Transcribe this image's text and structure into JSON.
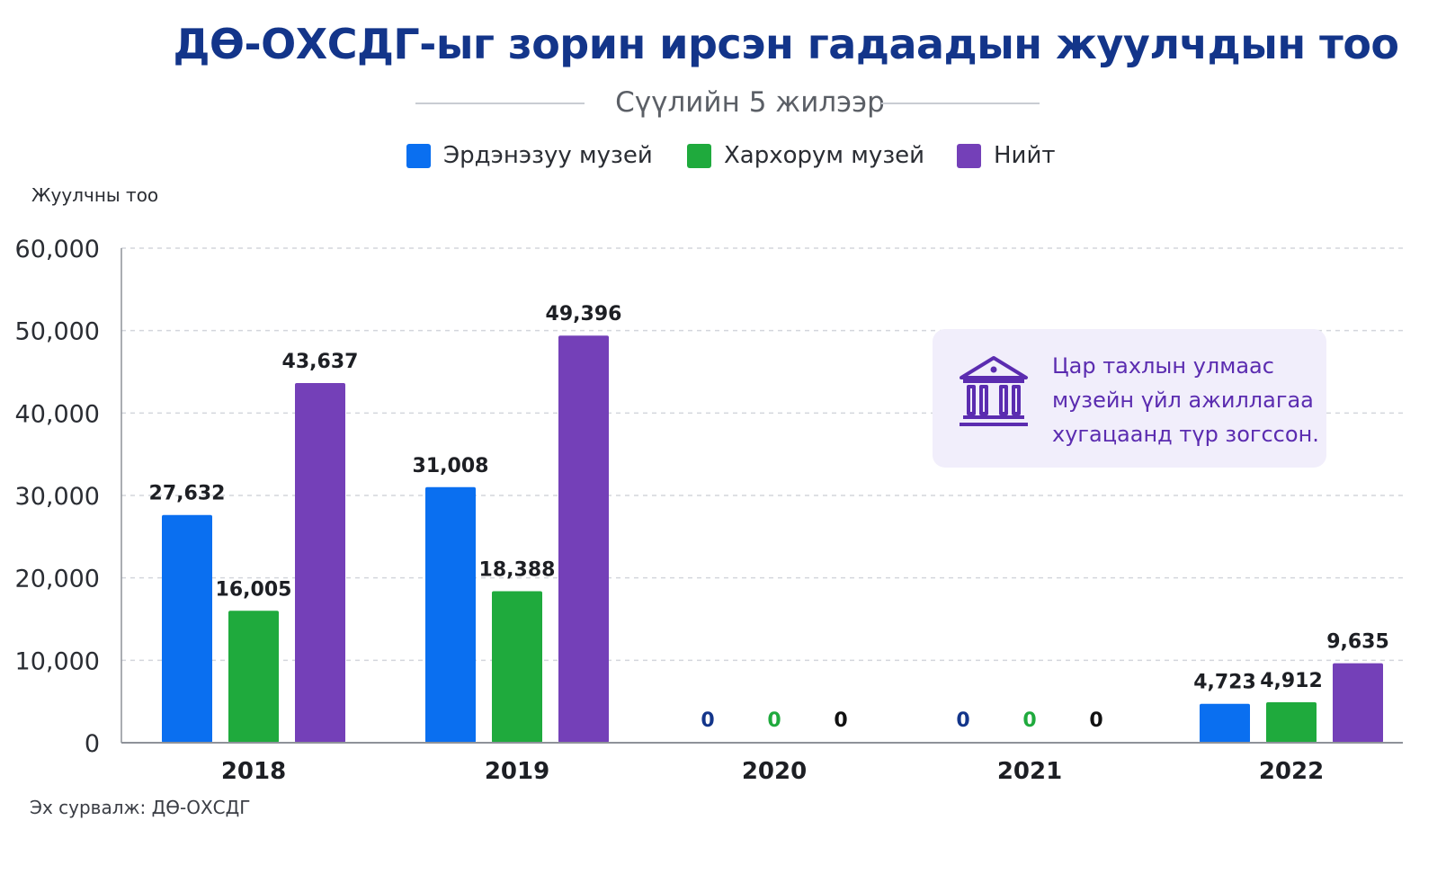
{
  "header": {
    "title": "ДӨ-ОХСДГ-ыг зорин ирсэн гадаадын жуулчдын тоо",
    "subtitle": "Сүүлийн 5 жилээр"
  },
  "note": {
    "icon": "museum-icon",
    "text": "Цар тахлын улмаас музейн үйл ажиллагаа хугацаанд түр зогссон."
  },
  "source": "Эх сурвалж: ДӨ-ОХСДГ",
  "colors": {
    "erdene_zuu": "#0a6ff0",
    "kharkhorum": "#1faa3d",
    "total": "#7440b8",
    "title": "#13358a",
    "note_text": "#5b2cb0"
  },
  "chart_data": {
    "type": "bar",
    "categories": [
      "2018",
      "2019",
      "2020",
      "2021",
      "2022"
    ],
    "series": [
      {
        "name": "Эрдэнэзуу музей",
        "values": [
          27632,
          31008,
          0,
          0,
          4723
        ]
      },
      {
        "name": "Хархорум музей",
        "values": [
          16005,
          18388,
          0,
          0,
          4912
        ]
      },
      {
        "name": "Нийт",
        "values": [
          43637,
          49396,
          0,
          0,
          9635
        ]
      }
    ],
    "data_labels": [
      [
        "27,632",
        "31,008",
        "0",
        "0",
        "4,723"
      ],
      [
        "16,005",
        "18,388",
        "0",
        "0",
        "4,912"
      ],
      [
        "43,637",
        "49,396",
        "0",
        "0",
        "9,635"
      ]
    ],
    "ylabel": "Жуулчны тоо",
    "ylim": [
      0,
      60000
    ],
    "yticks": [
      0,
      10000,
      20000,
      30000,
      40000,
      50000,
      60000
    ],
    "ytick_labels": [
      "0",
      "10,000",
      "20,000",
      "30,000",
      "40,000",
      "50,000",
      "60,000"
    ],
    "grid": true,
    "legend_position": "top-center"
  }
}
